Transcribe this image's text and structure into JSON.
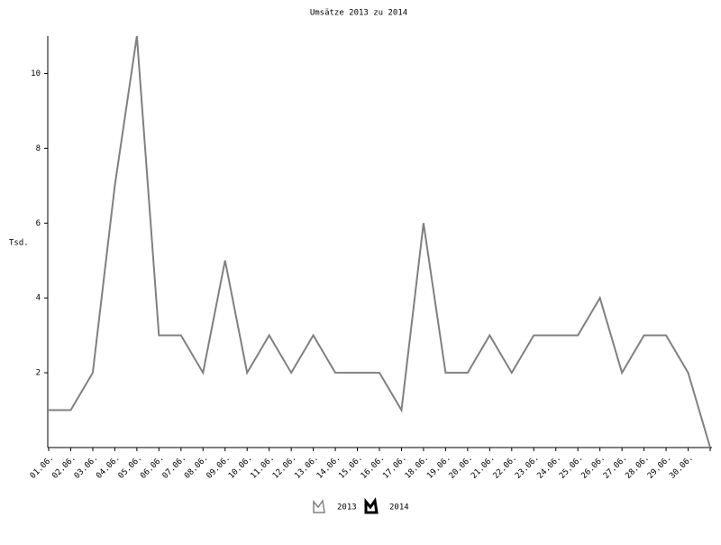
{
  "chart_data": {
    "type": "line",
    "title": "Umsätze 2013 zu 2014",
    "y_label": "Tsd.",
    "categories": [
      "01.06.",
      "02.06.",
      "03.06.",
      "04.06.",
      "05.06.",
      "06.06.",
      "07.06.",
      "08.06.",
      "09.06.",
      "10.06.",
      "11.06.",
      "12.06.",
      "13.06.",
      "14.06.",
      "15.06.",
      "16.06.",
      "17.06.",
      "18.06.",
      "19.06.",
      "20.06.",
      "21.06.",
      "22.06.",
      "23.06.",
      "24.06.",
      "25.06.",
      "26.06.",
      "27.06.",
      "28.06.",
      "29.06.",
      "30.06.",
      null
    ],
    "series": [
      {
        "name": "2013",
        "color": "#808080",
        "values": [
          1,
          1,
          2,
          7,
          11,
          3,
          3,
          2,
          5,
          2,
          3,
          2,
          3,
          2,
          2,
          2,
          1,
          6,
          2,
          2,
          3,
          2,
          3,
          3,
          3,
          4,
          2,
          3,
          3,
          2,
          0
        ]
      },
      {
        "name": "2014",
        "color": "#000000",
        "values": [
          null,
          null,
          null,
          null,
          null,
          null,
          null,
          null,
          null,
          null,
          null,
          null,
          null,
          null,
          null,
          null,
          null,
          null,
          null,
          null,
          null,
          null,
          null,
          null,
          null,
          null,
          null,
          null,
          null,
          null,
          null
        ]
      }
    ],
    "ylim": [
      0,
      11
    ],
    "yticks": [
      2,
      4,
      6,
      8,
      10
    ]
  }
}
